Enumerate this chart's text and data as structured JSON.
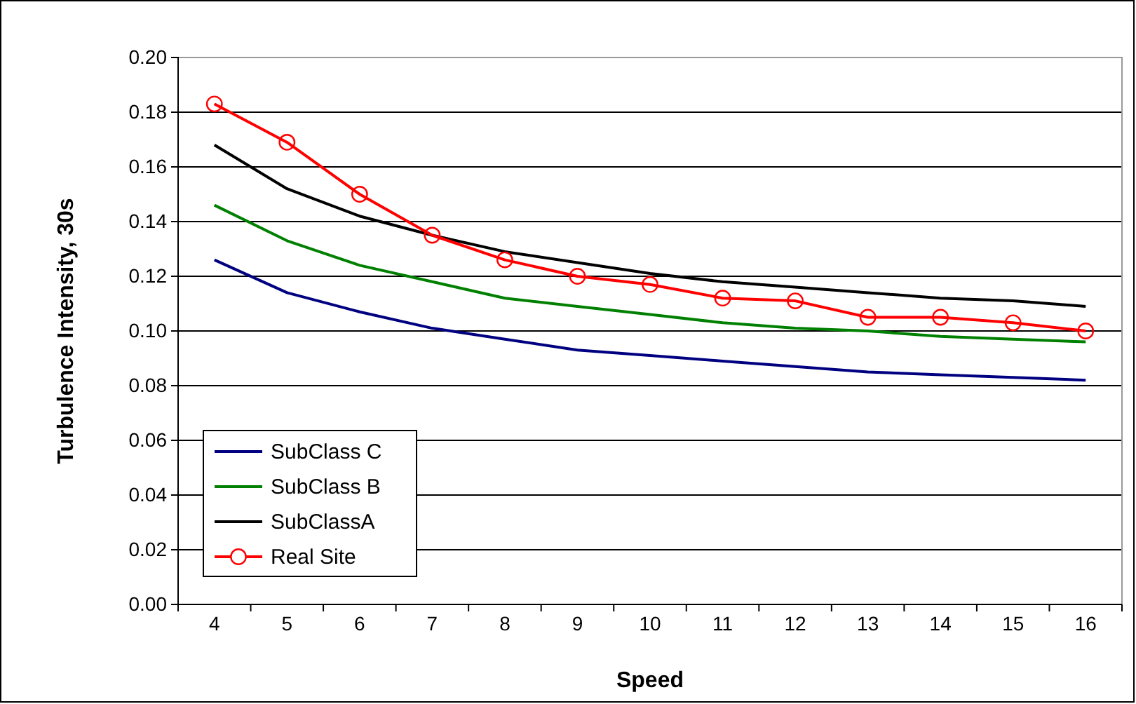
{
  "chart_data": {
    "type": "line",
    "xlabel": "Speed",
    "ylabel": "Turbulence Intensity, 30s",
    "categories": [
      "4",
      "5",
      "6",
      "7",
      "8",
      "9",
      "10",
      "11",
      "12",
      "13",
      "14",
      "15",
      "16"
    ],
    "series": [
      {
        "name": "SubClass C",
        "color": "#000080",
        "marker": "none",
        "values": [
          0.126,
          0.114,
          0.107,
          0.101,
          0.097,
          0.093,
          0.091,
          0.089,
          0.087,
          0.085,
          0.084,
          0.083,
          0.082
        ]
      },
      {
        "name": "SubClass B",
        "color": "#008000",
        "marker": "none",
        "values": [
          0.146,
          0.133,
          0.124,
          0.118,
          0.112,
          0.109,
          0.106,
          0.103,
          0.101,
          0.1,
          0.098,
          0.097,
          0.096
        ]
      },
      {
        "name": "SubClassA",
        "color": "#000000",
        "marker": "none",
        "values": [
          0.168,
          0.152,
          0.142,
          0.135,
          0.129,
          0.125,
          0.121,
          0.118,
          0.116,
          0.114,
          0.112,
          0.111,
          0.109
        ]
      },
      {
        "name": "Real Site",
        "color": "#ff0000",
        "marker": "circle",
        "values": [
          0.183,
          0.169,
          0.15,
          0.135,
          0.126,
          0.12,
          0.117,
          0.112,
          0.111,
          0.105,
          0.105,
          0.103,
          0.1
        ]
      }
    ],
    "ylim": [
      0,
      0.2
    ],
    "yticks": [
      {
        "value": 0,
        "label": "0.00"
      },
      {
        "value": 0.02,
        "label": "0.02"
      },
      {
        "value": 0.04,
        "label": "0.04"
      },
      {
        "value": 0.06,
        "label": "0.06"
      },
      {
        "value": 0.08,
        "label": "0.08"
      },
      {
        "value": 0.1,
        "label": "0.10"
      },
      {
        "value": 0.12,
        "label": "0.12"
      },
      {
        "value": 0.14,
        "label": "0.14"
      },
      {
        "value": 0.16,
        "label": "0.16"
      },
      {
        "value": 0.18,
        "label": "0.18"
      },
      {
        "value": 0.2,
        "label": "0.20"
      }
    ],
    "grid": "y",
    "legend": "bottom left",
    "line_style": "solid"
  }
}
